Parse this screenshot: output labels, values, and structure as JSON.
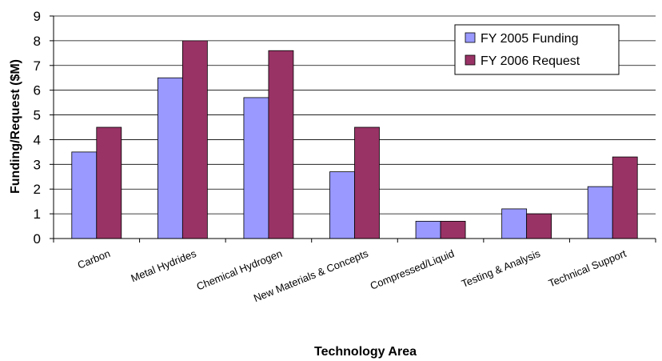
{
  "chart_data": {
    "type": "bar",
    "title": "",
    "xlabel": "Technology Area",
    "ylabel": "Funding/Request ($M)",
    "ylim": [
      0,
      9
    ],
    "yticks": [
      0,
      1,
      2,
      3,
      4,
      5,
      6,
      7,
      8,
      9
    ],
    "grid": true,
    "legend_position": "top-right",
    "categories": [
      "Carbon",
      "Metal Hydrides",
      "Chemical Hydrogen",
      "New Materials & Concepts",
      "Compressed/Liquid",
      "Testing & Analysis",
      "Technical Support"
    ],
    "series": [
      {
        "name": "FY 2005 Funding",
        "color": "#9999ff",
        "values": [
          3.5,
          6.5,
          5.7,
          2.7,
          0.7,
          1.2,
          2.1
        ]
      },
      {
        "name": "FY 2006 Request",
        "color": "#993366",
        "values": [
          4.5,
          8.0,
          7.6,
          4.5,
          0.7,
          1.0,
          3.3
        ]
      }
    ]
  }
}
